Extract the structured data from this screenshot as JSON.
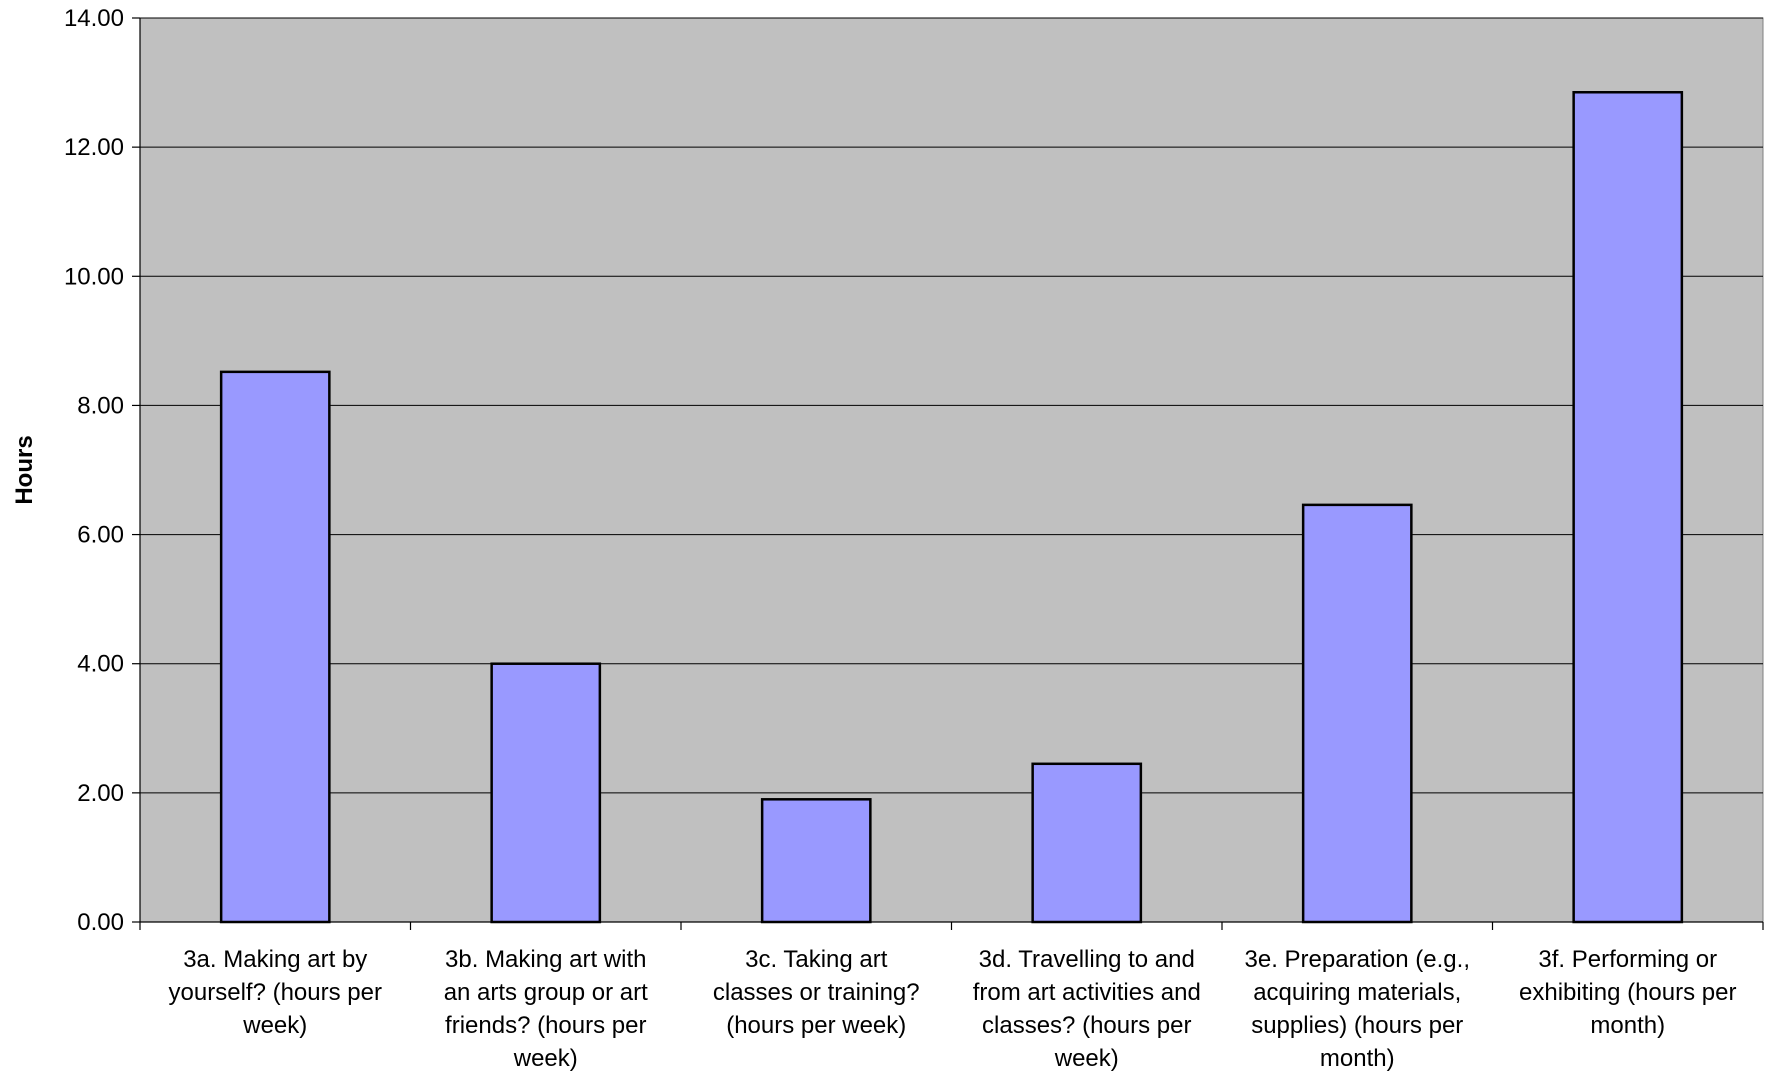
{
  "chart_data": {
    "type": "bar",
    "title": "",
    "xlabel": "",
    "ylabel": "Hours",
    "ylim": [
      0,
      14
    ],
    "yticks": [
      "0.00",
      "2.00",
      "4.00",
      "6.00",
      "8.00",
      "10.00",
      "12.00",
      "14.00"
    ],
    "grid": true,
    "legend": "none",
    "categories": [
      [
        "3a.  Making art by",
        "yourself? (hours per",
        "week)"
      ],
      [
        "3b.  Making art with",
        "an arts group or art",
        "friends? (hours per",
        "week)"
      ],
      [
        "3c.  Taking art",
        "classes or training?",
        "(hours per week)"
      ],
      [
        "3d.  Travelling to and",
        "from art activities and",
        "classes? (hours per",
        "week)"
      ],
      [
        "3e.  Preparation (e.g.,",
        "acquiring materials,",
        "supplies) (hours per",
        "month)"
      ],
      [
        "3f.  Performing or",
        "exhibiting (hours per",
        "month)"
      ]
    ],
    "values": [
      8.52,
      4.0,
      1.9,
      2.45,
      6.46,
      12.85
    ],
    "colors": {
      "plot_background": "#c0c0c0",
      "bar_fill": "#9999ff",
      "bar_stroke": "#000000",
      "gridline": "#000000"
    }
  }
}
